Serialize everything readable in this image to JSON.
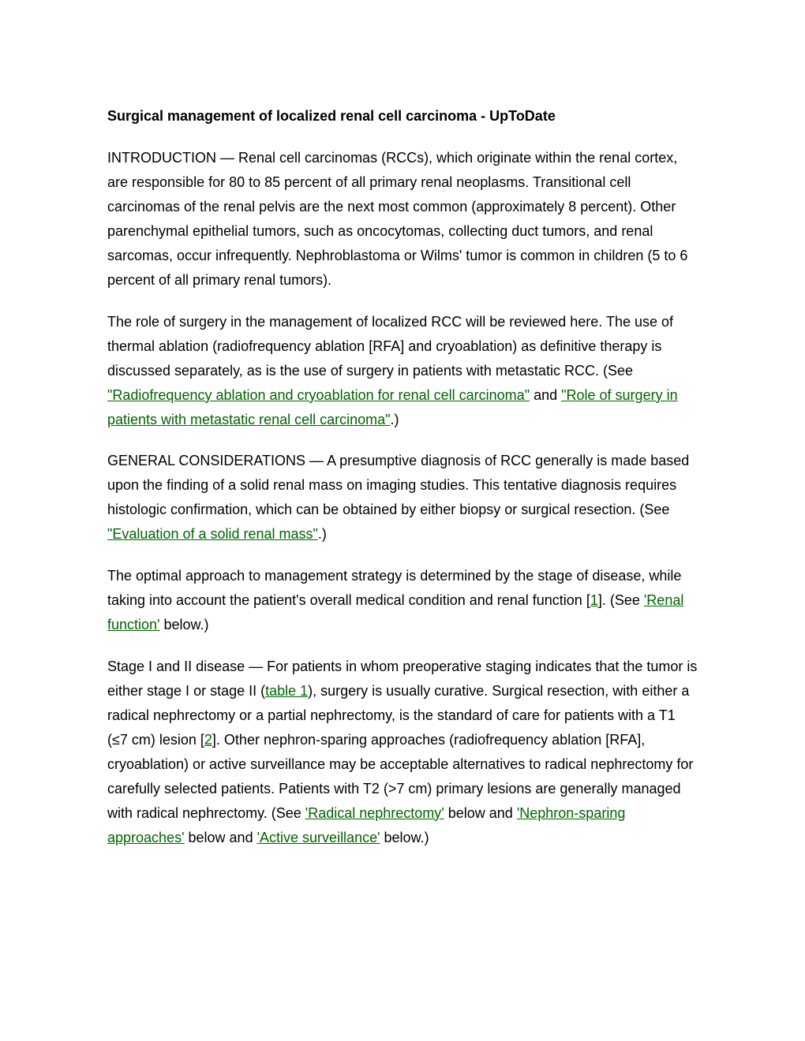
{
  "document": {
    "title": "Surgical management of localized renal cell carcinoma - UpToDate",
    "paragraphs": {
      "intro": {
        "prefix": "INTRODUCTION — ",
        "text": "Renal cell carcinomas (RCCs), which originate within the renal cortex, are responsible for 80 to 85 percent of all primary renal neoplasms. Transitional cell carcinomas of the renal pelvis are the next most common (approximately 8 percent). Other parenchymal epithelial tumors, such as oncocytomas, collecting duct tumors, and renal sarcomas, occur infrequently. Nephroblastoma or Wilms' tumor is common in children (5 to 6 percent of all primary renal tumors)."
      },
      "role_of_surgery": {
        "text1": "The role of surgery in the management of localized RCC will be reviewed here. The use of thermal ablation (radiofrequency ablation [RFA] and cryoablation) as definitive therapy is discussed separately, as is the use of surgery in patients with metastatic RCC. (See ",
        "link1": "\"Radiofrequency ablation and cryoablation for renal cell carcinoma\"",
        "text2": " and ",
        "link2": "\"Role of surgery in patients with metastatic renal cell carcinoma\"",
        "text3": ".)"
      },
      "general_considerations": {
        "prefix": "GENERAL CONSIDERATIONS — ",
        "text1": "A presumptive diagnosis of RCC generally is made based upon the finding of a solid renal mass on imaging studies. This tentative diagnosis requires histologic confirmation, which can be obtained by either biopsy or surgical resection. (See ",
        "link1": "\"Evaluation of a solid renal mass\"",
        "text2": ".)"
      },
      "optimal_approach": {
        "text1": "The optimal approach to management strategy is determined by the stage of disease, while taking into account the patient's overall medical condition and renal function [",
        "ref1": "1",
        "text2": "]. (See ",
        "link1": "'Renal function'",
        "text3": " below.)"
      },
      "stage_disease": {
        "prefix": "Stage I and II disease — ",
        "text1": "For patients in whom preoperative staging indicates that the tumor is either stage I or stage II (",
        "link1": "table 1",
        "text2": "), surgery is usually curative. Surgical resection, with either a radical nephrectomy or a partial nephrectomy, is the standard of care for patients with a T1 (≤7 cm) lesion [",
        "ref1": "2",
        "text3": "]. Other nephron-sparing approaches (radiofrequency ablation [RFA], cryoablation) or active surveillance may be acceptable alternatives to radical nephrectomy for carefully selected patients. Patients with T2 (>7 cm) primary lesions are generally managed with radical nephrectomy. (See ",
        "link2": "'Radical nephrectomy'",
        "text4": " below and ",
        "link3": "'Nephron-sparing approaches'",
        "text5": " below and ",
        "link4": "'Active surveillance'",
        "text6": " below.)"
      }
    }
  },
  "style": {
    "link_color": "#006400",
    "text_color": "#000000",
    "bg_color": "#ffffff",
    "font_family": "Arial",
    "title_fontsize": 18,
    "body_fontsize": 18,
    "line_height": 1.72
  }
}
